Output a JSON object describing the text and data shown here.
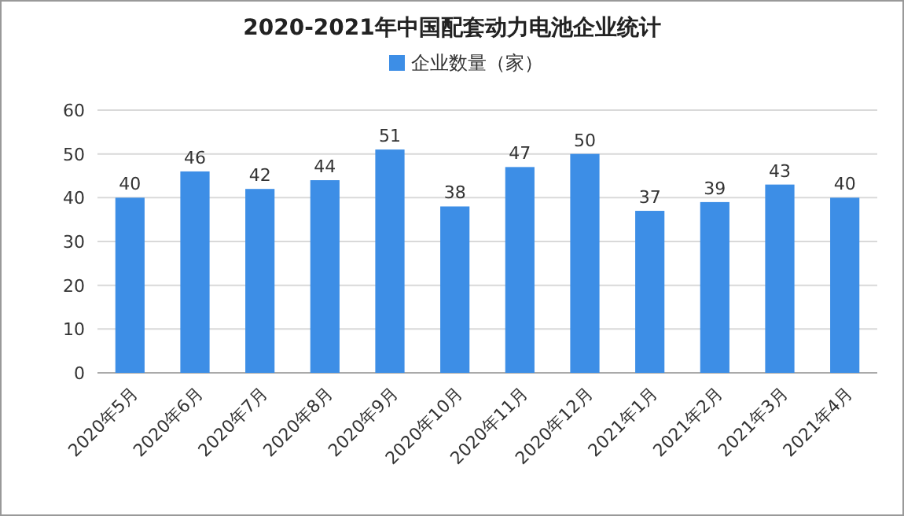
{
  "chart_data": {
    "type": "bar",
    "title": "2020-2021年中国配套动力电池企业统计",
    "categories": [
      "2020年5月",
      "2020年6月",
      "2020年7月",
      "2020年8月",
      "2020年9月",
      "2020年10月",
      "2020年11月",
      "2020年12月",
      "2021年1月",
      "2021年2月",
      "2021年3月",
      "2021年4月"
    ],
    "series": [
      {
        "name": "企业数量（家）",
        "color": "#3d8ee6",
        "values": [
          40,
          46,
          42,
          44,
          51,
          38,
          47,
          50,
          37,
          39,
          43,
          40
        ]
      }
    ],
    "ylim": [
      0,
      60
    ],
    "yticks": [
      0,
      10,
      20,
      30,
      40,
      50,
      60
    ],
    "grid": "y",
    "legend": "top",
    "data_labels": true
  }
}
